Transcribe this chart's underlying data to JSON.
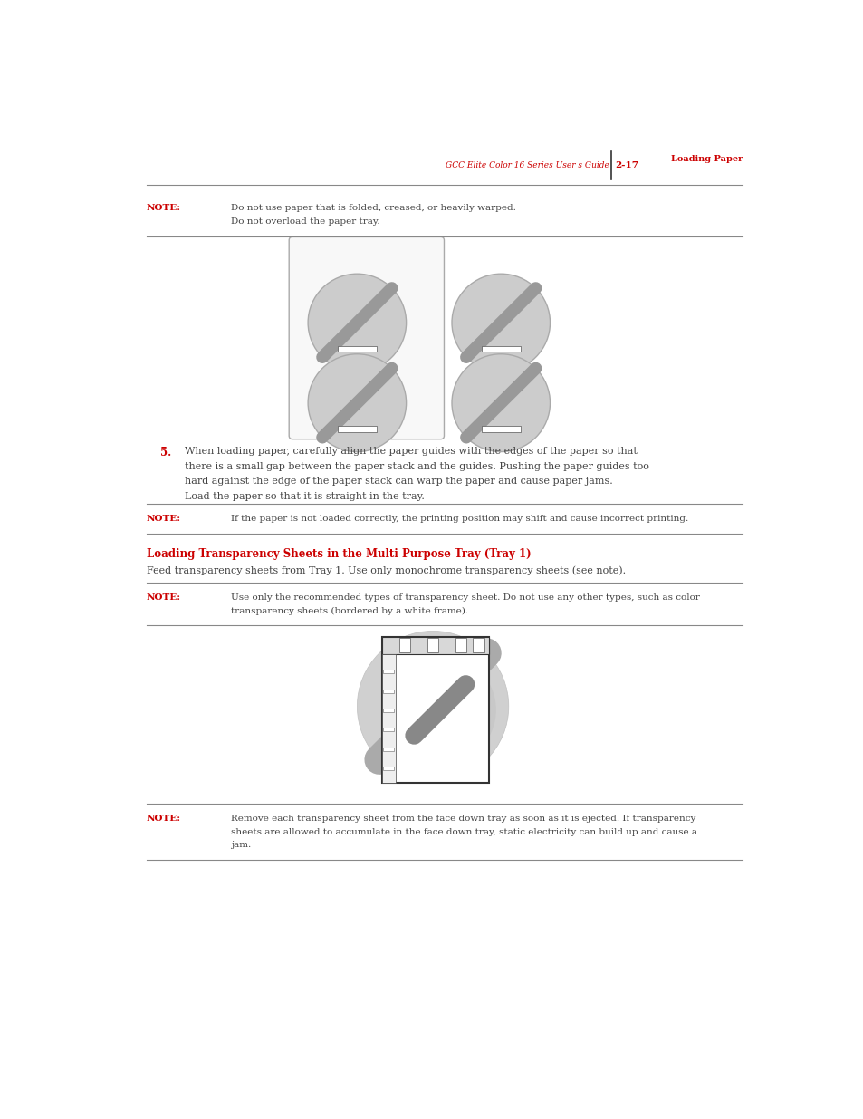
{
  "page_width": 9.54,
  "page_height": 12.35,
  "dpi": 100,
  "background_color": "#ffffff",
  "header_text1": "GCC Elite Color 16 Series User s Guide",
  "header_text2": "2-17",
  "header_text3": "Loading Paper",
  "header_color": "#cc0000",
  "note1_label": "NOTE:",
  "note1_text1": "Do not use paper that is folded, creased, or heavily warped.",
  "note1_text2": "Do not overload the paper tray.",
  "note_label_color": "#cc0000",
  "note_text_color": "#444444",
  "step5_num": "5.",
  "step5_num_color": "#cc0000",
  "step5_lines": [
    "When loading paper, carefully align the paper guides with the edges of the paper so that",
    "there is a small gap between the paper stack and the guides. Pushing the paper guides too",
    "hard against the edge of the paper stack can warp the paper and cause paper jams.",
    "Load the paper so that it is straight in the tray."
  ],
  "step5_text_color": "#444444",
  "note2_label": "NOTE:",
  "note2_text": "If the paper is not loaded correctly, the printing position may shift and cause incorrect printing.",
  "section_title": "Loading Transparency Sheets in the Multi Purpose Tray (Tray 1)",
  "section_title_color": "#cc0000",
  "section_body": "Feed transparency sheets from Tray 1. Use only monochrome transparency sheets (see note).",
  "section_body_color": "#444444",
  "note3_label": "NOTE:",
  "note3_text1": "Use only the recommended types of transparency sheet. Do not use any other types, such as color",
  "note3_text2": "transparency sheets (bordered by a white frame).",
  "note4_label": "NOTE:",
  "note4_text1": "Remove each transparency sheet from the face down tray as soon as it is ejected. If transparency",
  "note4_text2": "sheets are allowed to accumulate in the face down tray, static electricity can build up and cause a",
  "note4_text3": "jam.",
  "line_color": "#888888",
  "no_sym_fill": "#cccccc",
  "no_sym_edge": "#aaaaaa",
  "no_sym_bar": "#999999",
  "img_box_fill": "#f8f8f8",
  "img_box_edge": "#aaaaaa"
}
